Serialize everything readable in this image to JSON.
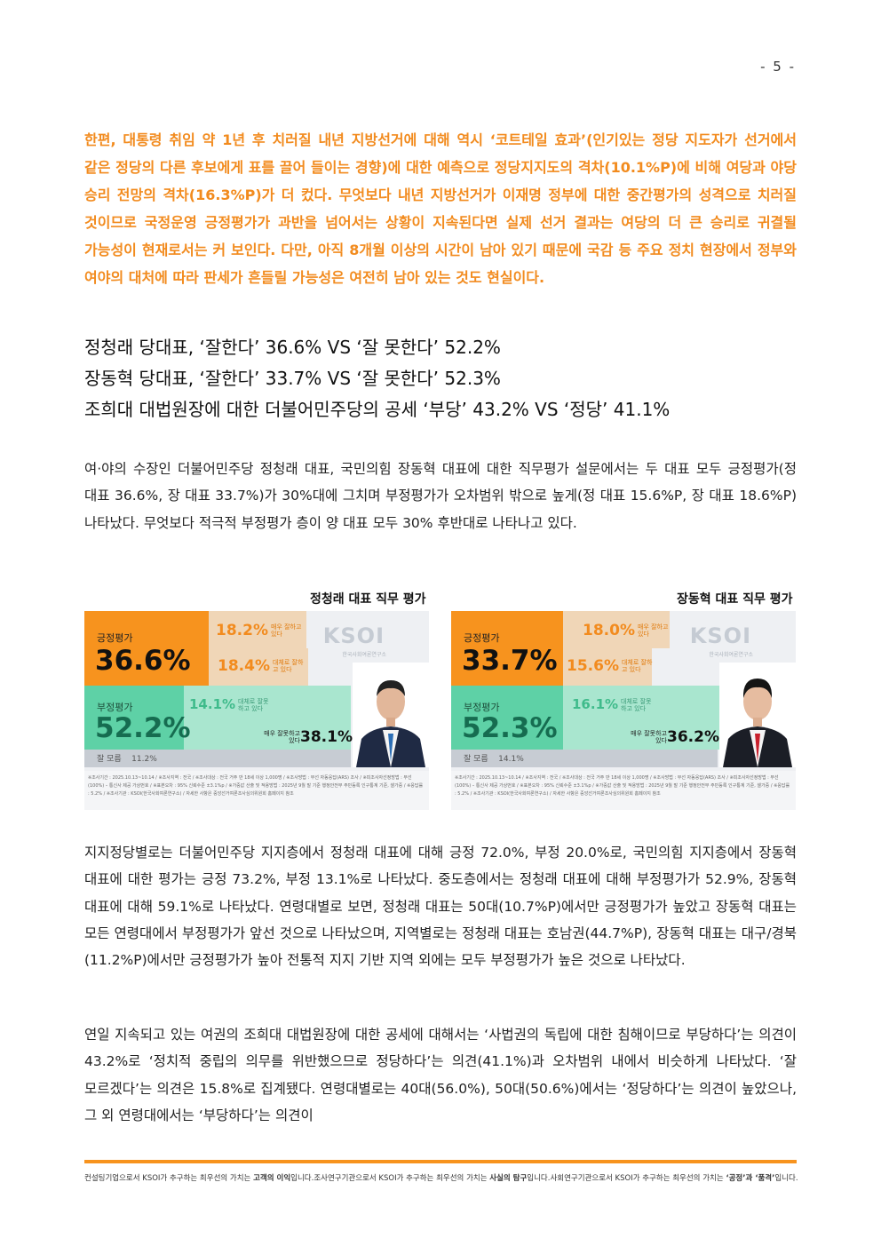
{
  "page_number": "- 5 -",
  "lead_paragraph": "한편, 대통령 취임 약 1년 후 치러질 내년 지방선거에 대해 역시 ‘코트테일 효과’(인기있는 정당 지도자가 선거에서 같은 정당의 다른 후보에게 표를 끌어 들이는 경향)에 대한 예측으로 정당지지도의 격차(10.1%P)에 비해 여당과 야당 승리 전망의 격차(16.3%P)가 더 컸다. 무엇보다 내년 지방선거가 이재명 정부에 대한 중간평가의 성격으로 치러질 것이므로 국정운영 긍정평가가 과반을 넘어서는 상황이 지속된다면 실제 선거 결과는 여당의 더 큰 승리로 귀결될 가능성이 현재로서는 커 보인다. 다만, 아직 8개월 이상의 시간이 남아 있기 때문에 국감 등 주요 정치 현장에서 정부와 여야의 대처에 따라 판세가 흔들릴 가능성은 여전히 남아 있는 것도 현실이다.",
  "headlines": [
    "정청래 당대표, ‘잘한다’ 36.6% VS ‘잘 못한다’ 52.2%",
    "장동혁 당대표, ‘잘한다’ 33.7% VS ‘잘 못한다’ 52.3%",
    "조희대 대법원장에 대한 더불어민주당의 공세 ‘부당’ 43.2% VS ‘정당’ 41.1%"
  ],
  "body_paragraph_1": "여·야의 수장인 더불어민주당 정청래 대표, 국민의힘 장동혁 대표에 대한 직무평가 설문에서는 두 대표 모두 긍정평가(정 대표 36.6%, 장 대표 33.7%)가 30%대에 그치며 부정평가가 오차범위 밖으로 높게(정 대표 15.6%P, 장 대표 18.6%P) 나타났다. 무엇보다 적극적 부정평가 층이 양 대표 모두 30% 후반대로 나타나고 있다.",
  "charts": [
    {
      "title": "정청래 대표 직무 평가",
      "positive_label": "긍정평가",
      "positive_value": "36.6%",
      "very_good_value": "18.2%",
      "very_good_note": "매우 잘하고 있다",
      "somewhat_good_value": "18.4%",
      "somewhat_good_note": "대체로 잘하고 있다",
      "negative_label": "부정평가",
      "negative_value": "52.2%",
      "somewhat_bad_value": "14.1%",
      "somewhat_bad_note": "대체로 잘못하고 있다",
      "very_bad_value": "38.1%",
      "very_bad_note": "매우 잘못하고 있다",
      "dk_label": "잘 모름",
      "dk_value": "11.2%",
      "logo": "KSOI",
      "logo_sub": "한국사회여론연구소",
      "footnote": "※조사기간 : 2025.10.13~10.14 / ※조사지역 : 전국 / ※조사대상 : 전국 거주 만 18세 이상 1,000명 / ※조사방법 : 무선 자동응답(ARS) 조사 / ※피조사자선정방법 : 무선(100%) – 통신사 제공 가상번호 / ※표본오차 : 95% 신뢰수준 ±3.1%p / ※가중값 산출 및 적용방법 : 2025년 9월 말 기준 행정안전부 주민등록 인구통계 기준, 셀가중 / ※응답률 : 5.2% / ※조사기관 : KSOI(한국사회여론연구소) / 자세한 사항은 중앙선거여론조사심의위원회 홈페이지 참조",
      "chart_data": {
        "type": "bar",
        "categories": [
          "매우 잘하고 있다",
          "대체로 잘하고 있다",
          "대체로 잘못하고 있다",
          "매우 잘못하고 있다",
          "잘 모름"
        ],
        "values": [
          18.2,
          18.4,
          14.1,
          38.1,
          11.2
        ],
        "title": "정청래 대표 직무 평가"
      }
    },
    {
      "title": "장동혁 대표 직무 평가",
      "positive_label": "긍정평가",
      "positive_value": "33.7%",
      "very_good_value": "18.0%",
      "very_good_note": "매우 잘하고 있다",
      "somewhat_good_value": "15.6%",
      "somewhat_good_note": "대체로 잘하고 있다",
      "negative_label": "부정평가",
      "negative_value": "52.3%",
      "somewhat_bad_value": "16.1%",
      "somewhat_bad_note": "대체로 잘못하고 있다",
      "very_bad_value": "36.2%",
      "very_bad_note": "매우 잘못하고 있다",
      "dk_label": "잘 모름",
      "dk_value": "14.1%",
      "logo": "KSOI",
      "logo_sub": "한국사회여론연구소",
      "footnote": "※조사기간 : 2025.10.13~10.14 / ※조사지역 : 전국 / ※조사대상 : 전국 거주 만 18세 이상 1,000명 / ※조사방법 : 무선 자동응답(ARS) 조사 / ※피조사자선정방법 : 무선(100%) – 통신사 제공 가상번호 / ※표본오차 : 95% 신뢰수준 ±3.1%p / ※가중값 산출 및 적용방법 : 2025년 9월 말 기준 행정안전부 주민등록 인구통계 기준, 셀가중 / ※응답률 : 5.2% / ※조사기관 : KSOI(한국사회여론연구소) / 자세한 사항은 중앙선거여론조사심의위원회 홈페이지 참조",
      "chart_data": {
        "type": "bar",
        "categories": [
          "매우 잘하고 있다",
          "대체로 잘하고 있다",
          "대체로 잘못하고 있다",
          "매우 잘못하고 있다",
          "잘 모름"
        ],
        "values": [
          18.0,
          15.6,
          16.1,
          36.2,
          14.1
        ],
        "title": "장동혁 대표 직무 평가"
      }
    }
  ],
  "body_paragraph_2": "지지정당별로는 더불어민주당 지지층에서 정청래 대표에 대해 긍정 72.0%, 부정 20.0%로, 국민의힘 지지층에서 장동혁 대표에 대한 평가는 긍정 73.2%, 부정 13.1%로 나타났다. 중도층에서는 정청래 대표에 대해 부정평가가 52.9%, 장동혁 대표에 대해 59.1%로 나타났다. 연령대별로 보면, 정청래 대표는 50대(10.7%P)에서만 긍정평가가 높았고 장동혁 대표는 모든 연령대에서 부정평가가 앞선 것으로 나타났으며, 지역별로는 정청래 대표는 호남권(44.7%P), 장동혁 대표는 대구/경북(11.2%P)에서만 긍정평가가 높아 전통적 지지 기반 지역 외에는 모두 부정평가가 높은 것으로 나타났다.",
  "body_paragraph_3": "연일 지속되고 있는 여권의 조희대 대법원장에 대한 공세에 대해서는 ‘사법권의 독립에 대한 침해이므로 부당하다’는 의견이 43.2%로 ‘정치적 중립의 의무를 위반했으므로 정당하다’는 의견(41.1%)과 오차범위 내에서 비슷하게 나타났다. ‘잘 모르겠다’는 의견은 15.8%로 집계됐다. 연령대별로는 40대(56.0%), 50대(50.6%)에서는 ‘정당하다’는 의견이 높았으나, 그 외 연령대에서는 ‘부당하다’는 의견이",
  "footer": {
    "item1_pre": "컨설팅기업으로서 KSOI가 추구하는 최우선의 가치는 ",
    "item1_bold": "고객의 이익",
    "item1_post": "입니다.",
    "item2_pre": "조사연구기관으로서 KSOI가 추구하는 최우선의 가치는 ",
    "item2_bold": "사실의 탐구",
    "item2_post": "입니다.",
    "item3_pre": "사회연구기관으로서 KSOI가 추구하는 최우선의 가치는 ",
    "item3_bold": "‘공정’과 ‘품격’",
    "item3_post": "입니다."
  },
  "colors": {
    "accent_orange": "#f7931e",
    "negative_green": "#5ed1a6",
    "dark_green_text": "#166c50"
  }
}
